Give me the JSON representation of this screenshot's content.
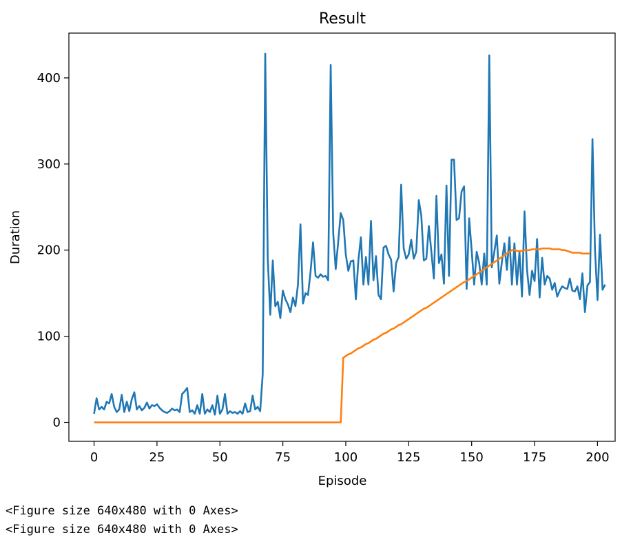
{
  "chart_data": {
    "type": "line",
    "title": "Result",
    "xlabel": "Episode",
    "ylabel": "Duration",
    "xlim": [
      -10,
      207
    ],
    "ylim": [
      -22,
      452
    ],
    "xticks": [
      0,
      25,
      50,
      75,
      100,
      125,
      150,
      175,
      200
    ],
    "xtick_labels": [
      "0",
      "25",
      "50",
      "75",
      "100",
      "125",
      "150",
      "175",
      "200"
    ],
    "yticks": [
      0,
      100,
      200,
      300,
      400
    ],
    "ytick_labels": [
      "0",
      "100",
      "200",
      "300",
      "400"
    ],
    "grid": false,
    "legend": "none",
    "series": [
      {
        "color": "#1f77b4",
        "values": [
          10,
          28,
          15,
          18,
          15,
          24,
          22,
          33,
          18,
          12,
          15,
          32,
          12,
          24,
          13,
          27,
          35,
          15,
          19,
          14,
          17,
          23,
          16,
          20,
          19,
          21,
          17,
          14,
          12,
          11,
          13,
          16,
          14,
          15,
          12,
          33,
          36,
          40,
          12,
          14,
          10,
          20,
          10,
          33,
          10,
          15,
          12,
          20,
          9,
          31,
          10,
          15,
          33,
          10,
          13,
          11,
          12,
          10,
          13,
          10,
          22,
          12,
          13,
          31,
          15,
          18,
          13,
          56,
          428,
          190,
          125,
          188,
          135,
          140,
          121,
          153,
          143,
          137,
          128,
          145,
          135,
          160,
          230,
          138,
          150,
          148,
          175,
          209,
          170,
          168,
          172,
          169,
          170,
          165,
          415,
          220,
          178,
          210,
          243,
          235,
          195,
          176,
          187,
          188,
          143,
          188,
          215,
          160,
          192,
          160,
          234,
          165,
          193,
          148,
          143,
          203,
          205,
          195,
          189,
          152,
          185,
          192,
          276,
          202,
          190,
          195,
          212,
          190,
          198,
          258,
          240,
          188,
          190,
          228,
          198,
          167,
          263,
          185,
          195,
          161,
          275,
          170,
          305,
          305,
          235,
          237,
          268,
          274,
          155,
          237,
          200,
          160,
          198,
          185,
          160,
          196,
          160,
          426,
          180,
          198,
          217,
          161,
          186,
          208,
          177,
          215,
          160,
          208,
          160,
          198,
          146,
          245,
          177,
          148,
          176,
          164,
          213,
          145,
          191,
          160,
          170,
          167,
          154,
          162,
          146,
          153,
          158,
          156,
          155,
          167,
          153,
          152,
          158,
          143,
          173,
          128,
          159,
          163,
          329,
          200,
          142,
          218,
          154,
          160
        ]
      },
      {
        "color": "#ff7f0e",
        "values": [
          0,
          0,
          0,
          0,
          0,
          0,
          0,
          0,
          0,
          0,
          0,
          0,
          0,
          0,
          0,
          0,
          0,
          0,
          0,
          0,
          0,
          0,
          0,
          0,
          0,
          0,
          0,
          0,
          0,
          0,
          0,
          0,
          0,
          0,
          0,
          0,
          0,
          0,
          0,
          0,
          0,
          0,
          0,
          0,
          0,
          0,
          0,
          0,
          0,
          0,
          0,
          0,
          0,
          0,
          0,
          0,
          0,
          0,
          0,
          0,
          0,
          0,
          0,
          0,
          0,
          0,
          0,
          0,
          0,
          0,
          0,
          0,
          0,
          0,
          0,
          0,
          0,
          0,
          0,
          0,
          0,
          0,
          0,
          0,
          0,
          0,
          0,
          0,
          0,
          0,
          0,
          0,
          0,
          0,
          0,
          0,
          0,
          0,
          0,
          75,
          77,
          79,
          80,
          82,
          84,
          86,
          87,
          89,
          91,
          92,
          94,
          96,
          97,
          99,
          101,
          103,
          104,
          106,
          108,
          109,
          111,
          113,
          114,
          116,
          118,
          120,
          122,
          124,
          126,
          128,
          130,
          132,
          133,
          135,
          137,
          139,
          141,
          143,
          145,
          147,
          149,
          151,
          153,
          155,
          157,
          159,
          161,
          163,
          164,
          166,
          168,
          170,
          172,
          174,
          176,
          178,
          180,
          182,
          184,
          186,
          188,
          190,
          192,
          194,
          196,
          198,
          200,
          200,
          199,
          199,
          199,
          200,
          200,
          200,
          201,
          201,
          201,
          201,
          202,
          202,
          202,
          202,
          201,
          201,
          201,
          201,
          200,
          200,
          199,
          198,
          197,
          197,
          197,
          197,
          196,
          196,
          196,
          196
        ]
      }
    ]
  },
  "output": {
    "line1": "<Figure size 640x480 with 0 Axes>",
    "line2": "<Figure size 640x480 with 0 Axes>"
  }
}
